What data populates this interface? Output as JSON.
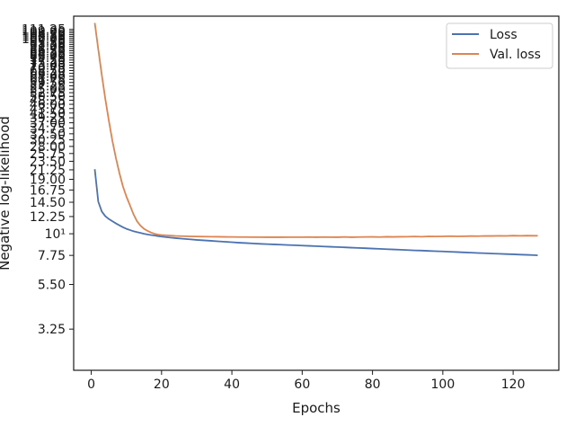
{
  "chart_data": {
    "type": "line",
    "title": "",
    "xlabel": "Epochs",
    "ylabel": "Negative log-likelihood",
    "yscale": "log",
    "xlim": [
      -5,
      133
    ],
    "ylim": [
      2.0,
      130
    ],
    "grid": false,
    "legend_placement": "top-right",
    "x_ticks": [
      0,
      20,
      40,
      60,
      80,
      100,
      120
    ],
    "y_ticks": [
      {
        "value": 3.25,
        "label": "3.25"
      },
      {
        "value": 5.5,
        "label": "5.50"
      },
      {
        "value": 7.75,
        "label": "7.75"
      },
      {
        "value": 10,
        "label": "10¹"
      },
      {
        "value": 12.25,
        "label": "12.25"
      },
      {
        "value": 14.5,
        "label": "14.50"
      },
      {
        "value": 16.75,
        "label": "16.75"
      },
      {
        "value": 19.0,
        "label": "19.00"
      },
      {
        "value": 21.25,
        "label": "21.25"
      },
      {
        "value": 23.5,
        "label": "23.50"
      },
      {
        "value": 25.75,
        "label": "25.75"
      },
      {
        "value": 28.0,
        "label": "28.00"
      },
      {
        "value": 30.25,
        "label": "30.25"
      },
      {
        "value": 32.5,
        "label": "32.50"
      },
      {
        "value": 34.75,
        "label": "34.75"
      },
      {
        "value": 37.0,
        "label": "37.00"
      },
      {
        "value": 39.25,
        "label": "39.25"
      },
      {
        "value": 41.5,
        "label": "41.50"
      },
      {
        "value": 43.75,
        "label": "43.75"
      },
      {
        "value": 46.0,
        "label": "46.00"
      },
      {
        "value": 48.25,
        "label": "48.25"
      },
      {
        "value": 50.5,
        "label": "50.50"
      },
      {
        "value": 52.75,
        "label": "52.75"
      },
      {
        "value": 55.0,
        "label": "55.00"
      },
      {
        "value": 57.25,
        "label": "57.25"
      },
      {
        "value": 59.5,
        "label": "59.50"
      },
      {
        "value": 61.75,
        "label": "61.75"
      },
      {
        "value": 64.0,
        "label": "64.00"
      },
      {
        "value": 66.25,
        "label": "66.25"
      },
      {
        "value": 68.5,
        "label": "68.50"
      },
      {
        "value": 70.75,
        "label": "70.75"
      },
      {
        "value": 73.0,
        "label": "73.00"
      },
      {
        "value": 75.25,
        "label": "75.25"
      },
      {
        "value": 77.5,
        "label": "77.50"
      },
      {
        "value": 79.75,
        "label": "79.75"
      },
      {
        "value": 82.0,
        "label": "82.00"
      },
      {
        "value": 84.25,
        "label": "84.25"
      },
      {
        "value": 86.5,
        "label": "86.50"
      },
      {
        "value": 88.75,
        "label": "88.75"
      },
      {
        "value": 91.0,
        "label": "91.00"
      },
      {
        "value": 93.25,
        "label": "93.25"
      },
      {
        "value": 95.5,
        "label": "95.50"
      },
      {
        "value": 97.75,
        "label": "97.75"
      },
      {
        "value": 100.0,
        "label": "100.00"
      },
      {
        "value": 102.25,
        "label": "102.25"
      },
      {
        "value": 104.5,
        "label": "104.50"
      },
      {
        "value": 106.75,
        "label": "106.75"
      },
      {
        "value": 109.0,
        "label": "109.00"
      },
      {
        "value": 111.25,
        "label": "111.25"
      }
    ],
    "series": [
      {
        "name": "Loss",
        "color": "#4c72b0",
        "x": [
          1,
          2,
          3,
          4,
          5,
          6,
          7,
          8,
          9,
          10,
          11,
          12,
          13,
          14,
          15,
          16,
          17,
          18,
          19,
          20,
          22,
          24,
          26,
          28,
          30,
          32,
          34,
          36,
          38,
          40,
          42,
          44,
          46,
          48,
          50,
          52,
          54,
          56,
          58,
          60,
          62,
          64,
          66,
          68,
          70,
          72,
          74,
          76,
          78,
          80,
          82,
          84,
          86,
          88,
          90,
          92,
          94,
          96,
          98,
          100,
          102,
          104,
          106,
          108,
          110,
          112,
          114,
          116,
          118,
          120,
          122,
          124,
          126,
          127
        ],
        "values": [
          21.4,
          14.6,
          13.0,
          12.3,
          11.9,
          11.6,
          11.3,
          11.05,
          10.8,
          10.6,
          10.45,
          10.3,
          10.2,
          10.1,
          10.0,
          9.92,
          9.85,
          9.8,
          9.73,
          9.67,
          9.58,
          9.5,
          9.43,
          9.37,
          9.3,
          9.25,
          9.2,
          9.15,
          9.1,
          9.05,
          9.0,
          8.96,
          8.92,
          8.88,
          8.85,
          8.82,
          8.79,
          8.76,
          8.73,
          8.7,
          8.67,
          8.64,
          8.61,
          8.58,
          8.55,
          8.52,
          8.49,
          8.46,
          8.43,
          8.4,
          8.37,
          8.34,
          8.31,
          8.28,
          8.25,
          8.22,
          8.2,
          8.17,
          8.14,
          8.12,
          8.09,
          8.06,
          8.03,
          8.0,
          7.97,
          7.95,
          7.92,
          7.9,
          7.87,
          7.85,
          7.82,
          7.8,
          7.77,
          7.75
        ]
      },
      {
        "name": "Val. loss",
        "color": "#dd8452",
        "x": [
          1,
          2,
          3,
          4,
          5,
          6,
          7,
          8,
          9,
          10,
          11,
          12,
          13,
          14,
          15,
          16,
          17,
          18,
          19,
          20,
          22,
          24,
          26,
          28,
          30,
          32,
          34,
          36,
          38,
          40,
          42,
          44,
          46,
          48,
          50,
          52,
          54,
          56,
          58,
          60,
          62,
          64,
          66,
          68,
          70,
          72,
          74,
          76,
          78,
          80,
          82,
          84,
          86,
          88,
          90,
          92,
          94,
          96,
          98,
          100,
          102,
          104,
          106,
          108,
          110,
          112,
          114,
          116,
          118,
          120,
          122,
          124,
          126,
          127
        ],
        "values": [
          120.0,
          88.0,
          65.0,
          49.0,
          38.0,
          30.0,
          24.5,
          20.5,
          17.5,
          15.5,
          14.0,
          12.6,
          11.6,
          11.0,
          10.6,
          10.35,
          10.15,
          10.0,
          9.9,
          9.85,
          9.8,
          9.75,
          9.72,
          9.7,
          9.68,
          9.67,
          9.66,
          9.65,
          9.64,
          9.63,
          9.62,
          9.62,
          9.61,
          9.61,
          9.6,
          9.6,
          9.6,
          9.61,
          9.61,
          9.61,
          9.62,
          9.6,
          9.62,
          9.61,
          9.6,
          9.63,
          9.6,
          9.62,
          9.63,
          9.64,
          9.62,
          9.65,
          9.64,
          9.65,
          9.66,
          9.68,
          9.66,
          9.7,
          9.68,
          9.7,
          9.72,
          9.7,
          9.71,
          9.73,
          9.72,
          9.75,
          9.74,
          9.76,
          9.75,
          9.78,
          9.76,
          9.78,
          9.77,
          9.77
        ]
      }
    ]
  }
}
